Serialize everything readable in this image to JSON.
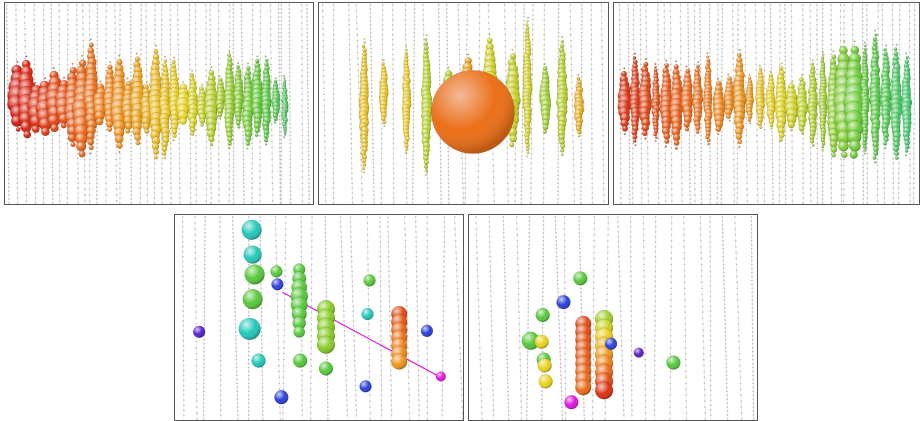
{
  "figure": {
    "panels": [
      {
        "id": "p1",
        "name": "event-display-panel-1",
        "palette": "red-to-green"
      },
      {
        "id": "p2",
        "name": "event-display-panel-2",
        "palette": "orange-yellow-green"
      },
      {
        "id": "p3",
        "name": "event-display-panel-3",
        "palette": "red-to-green"
      },
      {
        "id": "p4",
        "name": "event-display-panel-4",
        "palette": "blue-to-red"
      },
      {
        "id": "p5",
        "name": "event-display-panel-5",
        "palette": "blue-to-red"
      }
    ],
    "colors": {
      "red": "#d41a10",
      "orange": "#f07a18",
      "yellow": "#e8d21c",
      "green": "#56c83a",
      "cyan": "#22c8b8",
      "blue": "#2a40d8",
      "purple": "#5a22c8",
      "magenta": "#e014e0",
      "string_gray": "#b8b8b8"
    }
  }
}
